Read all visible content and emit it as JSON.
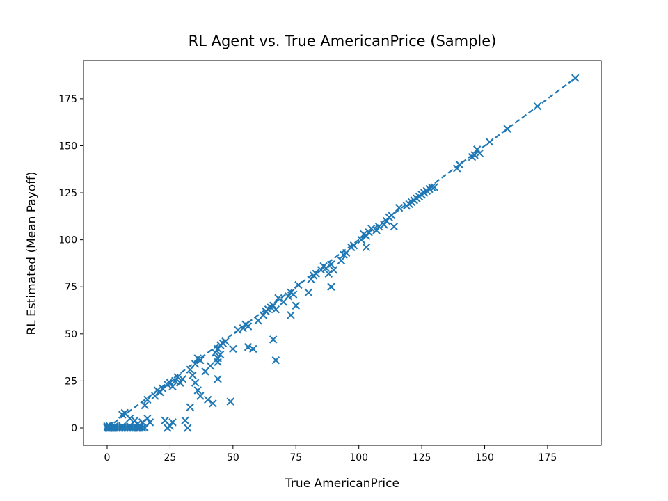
{
  "chart_data": {
    "type": "scatter",
    "title": "RL Agent vs. True AmericanPrice (Sample)",
    "x_label": "True AmericanPrice",
    "y_label": "RL Estimated (Mean Payoff)",
    "xlim": [
      -9.4,
      196.3
    ],
    "ylim": [
      -9.25,
      195.3
    ],
    "xticks": [
      0,
      25,
      50,
      75,
      100,
      125,
      150,
      175
    ],
    "yticks": [
      0,
      25,
      50,
      75,
      100,
      125,
      150,
      175
    ],
    "marker": "x",
    "series": [
      {
        "color": "#1f77b4",
        "x": [
          0,
          0.5,
          1,
          1.5,
          2,
          3,
          4,
          5,
          6,
          7,
          8,
          9,
          10,
          11,
          12,
          13,
          14,
          15,
          0,
          1,
          3,
          6,
          9,
          12,
          14,
          16,
          17,
          11,
          13,
          24,
          25,
          23,
          26,
          31,
          32,
          6,
          7,
          9,
          15,
          16,
          19,
          20,
          21,
          22,
          24,
          25,
          26,
          27,
          28,
          30,
          29,
          33,
          35,
          36,
          37,
          34,
          35,
          36,
          37,
          40,
          42,
          33,
          39,
          41,
          43,
          44,
          45,
          46,
          47,
          44,
          45,
          44,
          44,
          49,
          50,
          52,
          54,
          55,
          56,
          56,
          58,
          60,
          62,
          63,
          64,
          65,
          66,
          67,
          66,
          67,
          68,
          70,
          72,
          73,
          74,
          76,
          75,
          73,
          80,
          81,
          82,
          83,
          85,
          86,
          88,
          87,
          89,
          90,
          93,
          94,
          95,
          97,
          98,
          101,
          102,
          103,
          104,
          105,
          107,
          108,
          110,
          111,
          112,
          113,
          114,
          103,
          89,
          116,
          119,
          120,
          121,
          122,
          123,
          124,
          125,
          126,
          127,
          128,
          129,
          130,
          139,
          140,
          145,
          146,
          147,
          148,
          152,
          159,
          171,
          186
        ],
        "values": [
          0,
          0,
          0,
          0,
          0,
          0,
          0,
          0,
          0,
          0,
          0,
          0,
          0,
          0,
          0,
          0,
          0,
          0,
          1,
          1,
          1,
          1,
          1,
          2,
          3,
          5,
          3,
          4,
          1,
          0,
          1,
          4,
          3,
          4,
          0,
          7,
          8,
          5,
          12,
          15,
          17,
          20,
          19,
          21,
          23,
          24,
          22,
          25,
          27,
          26,
          24,
          31,
          34,
          37,
          36,
          28,
          24,
          20,
          17,
          15,
          13,
          11,
          30,
          33,
          40,
          42,
          44,
          45,
          46,
          37,
          39,
          35,
          26,
          14,
          42,
          52,
          53,
          55,
          54,
          43,
          42,
          57,
          60,
          62,
          63,
          64,
          65,
          63,
          47,
          36,
          69,
          67,
          70,
          72,
          71,
          76,
          65,
          60,
          72,
          79,
          81,
          82,
          84,
          86,
          82,
          85,
          87,
          84,
          89,
          92,
          93,
          96,
          97,
          100,
          103,
          102,
          104,
          106,
          105,
          107,
          108,
          110,
          112,
          113,
          107,
          96,
          75,
          117,
          118,
          119,
          120,
          121,
          122,
          123,
          124,
          125,
          126,
          127,
          128,
          128,
          138,
          140,
          144,
          145,
          148,
          146,
          152,
          159,
          171,
          186
        ]
      }
    ],
    "reference_line": {
      "color": "#1f77b4",
      "dashed": true,
      "x": [
        0,
        186.5
      ],
      "values": [
        0,
        186.5
      ]
    }
  }
}
